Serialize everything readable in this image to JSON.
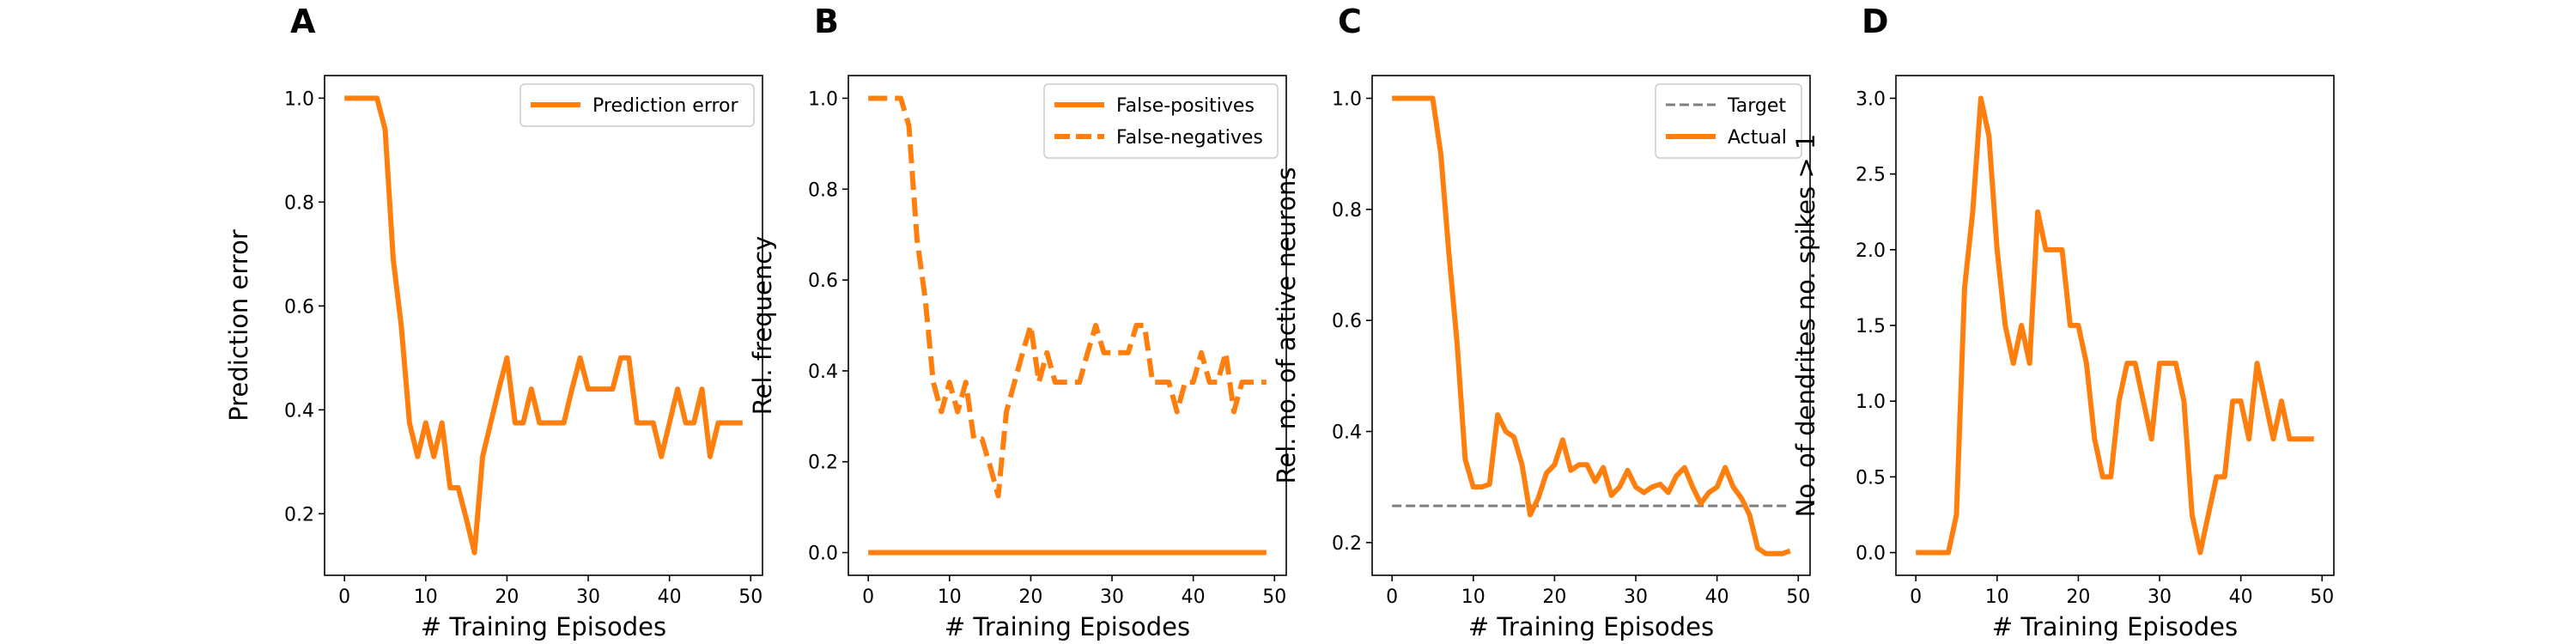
{
  "colors": {
    "orange": "#ff7f0e",
    "target_gray": "#7f7f7f",
    "axis": "#000000"
  },
  "chart_data": [
    {
      "panel": "A",
      "type": "line",
      "xlabel": "# Training Episodes",
      "ylabel": "Prediction error",
      "xlim": [
        -2.45,
        51.45
      ],
      "ylim": [
        0.0815,
        1.0435
      ],
      "xticks": [
        0,
        10,
        20,
        30,
        40,
        50
      ],
      "yticks": [
        0.2,
        0.4,
        0.6,
        0.8,
        1.0
      ],
      "ytick_labels": [
        "0.2",
        "0.4",
        "0.6",
        "0.8",
        "1.0"
      ],
      "legend": {
        "location": "upper right",
        "entries": [
          {
            "name": "Prediction error",
            "style": "solid"
          }
        ]
      },
      "series": [
        {
          "name": "Prediction error",
          "style": "solid",
          "color": "#ff7f0e",
          "x": [
            0,
            1,
            2,
            3,
            4,
            5,
            6,
            7,
            8,
            9,
            10,
            11,
            12,
            13,
            14,
            15,
            16,
            17,
            18,
            19,
            20,
            21,
            22,
            23,
            24,
            25,
            26,
            27,
            28,
            29,
            30,
            31,
            32,
            33,
            34,
            35,
            36,
            37,
            38,
            39,
            40,
            41,
            42,
            43,
            44,
            45,
            46,
            47,
            48,
            49
          ],
          "values": [
            1.0,
            1.0,
            1.0,
            1.0,
            1.0,
            0.94,
            0.69,
            0.56,
            0.375,
            0.31,
            0.375,
            0.31,
            0.375,
            0.25,
            0.25,
            0.19,
            0.125,
            0.31,
            0.375,
            0.44,
            0.5,
            0.375,
            0.375,
            0.44,
            0.375,
            0.375,
            0.375,
            0.375,
            0.44,
            0.5,
            0.44,
            0.44,
            0.44,
            0.44,
            0.5,
            0.5,
            0.375,
            0.375,
            0.375,
            0.31,
            0.375,
            0.44,
            0.375,
            0.375,
            0.44,
            0.31,
            0.375,
            0.375,
            0.375,
            0.375
          ]
        }
      ]
    },
    {
      "panel": "B",
      "type": "line",
      "xlabel": "# Training Episodes",
      "ylabel": "Rel. frequency",
      "xlim": [
        -2.45,
        51.45
      ],
      "ylim": [
        -0.05,
        1.05
      ],
      "xticks": [
        0,
        10,
        20,
        30,
        40,
        50
      ],
      "yticks": [
        0.0,
        0.2,
        0.4,
        0.6,
        0.8,
        1.0
      ],
      "ytick_labels": [
        "0.0",
        "0.2",
        "0.4",
        "0.6",
        "0.8",
        "1.0"
      ],
      "legend": {
        "location": "upper right",
        "entries": [
          {
            "name": "False-positives",
            "style": "solid"
          },
          {
            "name": "False-negatives",
            "style": "dashed"
          }
        ]
      },
      "series": [
        {
          "name": "False-positives",
          "style": "solid",
          "color": "#ff7f0e",
          "x": [
            0,
            49
          ],
          "values": [
            0.0,
            0.0
          ]
        },
        {
          "name": "False-negatives",
          "style": "dashed",
          "color": "#ff7f0e",
          "x": [
            0,
            1,
            2,
            3,
            4,
            5,
            6,
            7,
            8,
            9,
            10,
            11,
            12,
            13,
            14,
            15,
            16,
            17,
            18,
            19,
            20,
            21,
            22,
            23,
            24,
            25,
            26,
            27,
            28,
            29,
            30,
            31,
            32,
            33,
            34,
            35,
            36,
            37,
            38,
            39,
            40,
            41,
            42,
            43,
            44,
            45,
            46,
            47,
            48,
            49
          ],
          "values": [
            1.0,
            1.0,
            1.0,
            1.0,
            1.0,
            0.94,
            0.69,
            0.56,
            0.375,
            0.31,
            0.375,
            0.31,
            0.375,
            0.25,
            0.25,
            0.19,
            0.125,
            0.31,
            0.375,
            0.44,
            0.5,
            0.375,
            0.44,
            0.375,
            0.375,
            0.375,
            0.375,
            0.44,
            0.5,
            0.44,
            0.44,
            0.44,
            0.44,
            0.5,
            0.5,
            0.375,
            0.375,
            0.375,
            0.31,
            0.375,
            0.375,
            0.44,
            0.375,
            0.375,
            0.44,
            0.31,
            0.375,
            0.375,
            0.375,
            0.375
          ]
        }
      ]
    },
    {
      "panel": "C",
      "type": "line",
      "xlabel": "# Training Episodes",
      "ylabel": "Rel. no. of active neurons",
      "xlim": [
        -2.45,
        51.45
      ],
      "ylim": [
        0.141,
        1.041
      ],
      "xticks": [
        0,
        10,
        20,
        30,
        40,
        50
      ],
      "yticks": [
        0.2,
        0.4,
        0.6,
        0.8,
        1.0
      ],
      "ytick_labels": [
        "0.2",
        "0.4",
        "0.6",
        "0.8",
        "1.0"
      ],
      "legend": {
        "location": "upper right",
        "entries": [
          {
            "name": "Target",
            "style": "dashed-gray"
          },
          {
            "name": "Actual",
            "style": "solid"
          }
        ]
      },
      "series": [
        {
          "name": "Target",
          "style": "dashed-gray",
          "color": "#7f7f7f",
          "x": [
            0,
            49
          ],
          "values": [
            0.266,
            0.266
          ]
        },
        {
          "name": "Actual",
          "style": "solid",
          "color": "#ff7f0e",
          "x": [
            0,
            1,
            2,
            3,
            4,
            5,
            6,
            7,
            8,
            9,
            10,
            11,
            12,
            13,
            14,
            15,
            16,
            17,
            18,
            19,
            20,
            21,
            22,
            23,
            24,
            25,
            26,
            27,
            28,
            29,
            30,
            31,
            32,
            33,
            34,
            35,
            36,
            37,
            38,
            39,
            40,
            41,
            42,
            43,
            44,
            45,
            46,
            47,
            48,
            49
          ],
          "values": [
            1.0,
            1.0,
            1.0,
            1.0,
            1.0,
            1.0,
            0.9,
            0.72,
            0.56,
            0.35,
            0.3,
            0.3,
            0.305,
            0.43,
            0.4,
            0.39,
            0.34,
            0.25,
            0.28,
            0.325,
            0.34,
            0.385,
            0.33,
            0.34,
            0.34,
            0.31,
            0.335,
            0.285,
            0.3,
            0.33,
            0.3,
            0.29,
            0.3,
            0.305,
            0.29,
            0.32,
            0.335,
            0.3,
            0.27,
            0.29,
            0.3,
            0.335,
            0.3,
            0.28,
            0.25,
            0.19,
            0.18,
            0.18,
            0.18,
            0.185
          ]
        }
      ]
    },
    {
      "panel": "D",
      "type": "line",
      "xlabel": "# Training Episodes",
      "ylabel": "No. of dendrites no. spikes > 1",
      "xlim": [
        -2.45,
        51.45
      ],
      "ylim": [
        -0.15,
        3.15
      ],
      "xticks": [
        0,
        10,
        20,
        30,
        40,
        50
      ],
      "yticks": [
        0.0,
        0.5,
        1.0,
        1.5,
        2.0,
        2.5,
        3.0
      ],
      "ytick_labels": [
        "0.0",
        "0.5",
        "1.0",
        "1.5",
        "2.0",
        "2.5",
        "3.0"
      ],
      "legend": null,
      "series": [
        {
          "style": "solid",
          "color": "#ff7f0e",
          "x": [
            0,
            1,
            2,
            3,
            4,
            5,
            6,
            7,
            8,
            9,
            10,
            11,
            12,
            13,
            14,
            15,
            16,
            17,
            18,
            19,
            20,
            21,
            22,
            23,
            24,
            25,
            26,
            27,
            28,
            29,
            30,
            31,
            32,
            33,
            34,
            35,
            36,
            37,
            38,
            39,
            40,
            41,
            42,
            43,
            44,
            45,
            46,
            47,
            48,
            49
          ],
          "values": [
            0.0,
            0.0,
            0.0,
            0.0,
            0.0,
            0.25,
            1.75,
            2.25,
            3.0,
            2.75,
            2.0,
            1.5,
            1.25,
            1.5,
            1.25,
            2.25,
            2.0,
            2.0,
            2.0,
            1.5,
            1.5,
            1.25,
            0.75,
            0.5,
            0.5,
            1.0,
            1.25,
            1.25,
            1.0,
            0.75,
            1.25,
            1.25,
            1.25,
            1.0,
            0.25,
            0.0,
            0.25,
            0.5,
            0.5,
            1.0,
            1.0,
            0.75,
            1.25,
            1.0,
            0.75,
            1.0,
            0.75,
            0.75,
            0.75,
            0.75
          ]
        }
      ]
    }
  ]
}
